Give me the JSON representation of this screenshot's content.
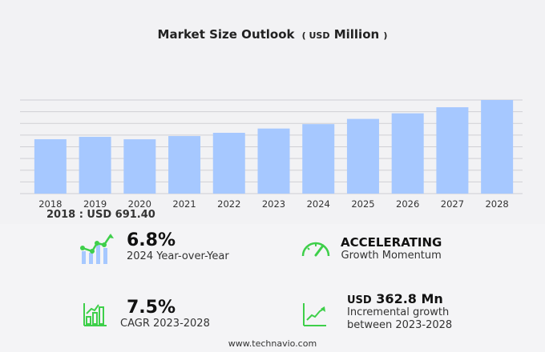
{
  "title": {
    "main": "Market Size Outlook",
    "open": "(",
    "unit": "USD",
    "unit_word": "Million",
    "close": ")"
  },
  "chart_data": {
    "type": "bar",
    "title": "Market Size Outlook (USD Million)",
    "categories": [
      "2018",
      "2019",
      "2020",
      "2021",
      "2022",
      "2023",
      "2024",
      "2025",
      "2026",
      "2027",
      "2028"
    ],
    "values": [
      691.4,
      722,
      691,
      732,
      773,
      827.5,
      883.8,
      950,
      1021,
      1098,
      1190.3
    ],
    "ylim": [
      0,
      1190.3
    ],
    "grid": true,
    "bar_color": "#a6c8ff",
    "grid_color": "#cfcfd4"
  },
  "base_label": "2018 : USD  691.40",
  "kpis": {
    "yoy": {
      "value": "6.8%",
      "label": "2024 Year-over-Year",
      "icon": "bar-line-growth-icon"
    },
    "momentum": {
      "value": "ACCELERATING",
      "label": "Growth Momentum",
      "icon": "speedometer-icon"
    },
    "cagr": {
      "value": "7.5%",
      "label": "CAGR 2023-2028",
      "icon": "bar-chart-growth-icon"
    },
    "incremental": {
      "prefix": "USD",
      "value": "362.8 Mn",
      "label1": "Incremental growth",
      "label2": "between 2023-2028",
      "icon": "line-trend-icon"
    }
  },
  "accent_color": "#3ecf4a",
  "footer": "www.technavio.com"
}
